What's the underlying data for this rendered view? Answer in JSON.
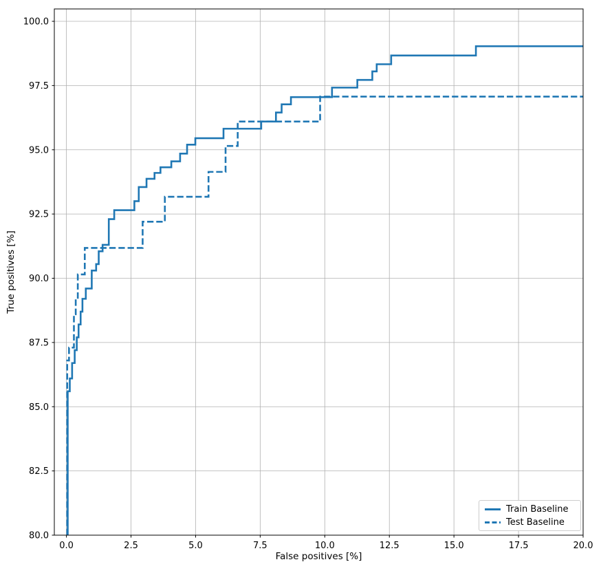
{
  "figure": {
    "background": "#ffffff"
  },
  "chart_data": {
    "type": "line",
    "subtype": "step-post",
    "title": "",
    "xlabel": "False positives [%]",
    "ylabel": "True positives [%]",
    "xlim": [
      -0.4685,
      20.0
    ],
    "ylim": [
      80.0,
      100.482
    ],
    "grid": true,
    "grid_color": "#b0b0b0",
    "axis_color": "#000000",
    "line_color": "#1f77b4",
    "legend_position": "lower right",
    "xticks": {
      "values": [
        0,
        2.5,
        5,
        7.5,
        10,
        12.5,
        15,
        17.5,
        20
      ],
      "labels": [
        "0.0",
        "2.5",
        "5.0",
        "7.5",
        "10.0",
        "12.5",
        "15.0",
        "17.5",
        "20.0"
      ]
    },
    "yticks": {
      "values": [
        80,
        82.5,
        85,
        87.5,
        90,
        92.5,
        95,
        97.5,
        100
      ],
      "labels": [
        "80.0",
        "82.5",
        "85.0",
        "87.5",
        "90.0",
        "92.5",
        "95.0",
        "97.5",
        "100.0"
      ]
    },
    "series": [
      {
        "name": "Train Baseline",
        "style": "solid",
        "color": "#1f77b4",
        "start_y": 80.0,
        "end_x": 20.0,
        "steps": [
          [
            0.05,
            85.6
          ],
          [
            0.13,
            86.1
          ],
          [
            0.22,
            86.7
          ],
          [
            0.32,
            87.2
          ],
          [
            0.4,
            87.7
          ],
          [
            0.47,
            88.2
          ],
          [
            0.55,
            88.7
          ],
          [
            0.62,
            89.2
          ],
          [
            0.75,
            89.6
          ],
          [
            0.98,
            90.3
          ],
          [
            1.15,
            90.55
          ],
          [
            1.25,
            91.05
          ],
          [
            1.4,
            91.3
          ],
          [
            1.64,
            92.3
          ],
          [
            1.85,
            92.65
          ],
          [
            2.63,
            93.0
          ],
          [
            2.8,
            93.55
          ],
          [
            3.1,
            93.87
          ],
          [
            3.41,
            94.1
          ],
          [
            3.64,
            94.32
          ],
          [
            4.06,
            94.55
          ],
          [
            4.4,
            94.85
          ],
          [
            4.67,
            95.2
          ],
          [
            4.99,
            95.45
          ],
          [
            6.08,
            95.82
          ],
          [
            7.54,
            96.1
          ],
          [
            8.11,
            96.45
          ],
          [
            8.33,
            96.77
          ],
          [
            8.69,
            97.05
          ],
          [
            10.28,
            97.42
          ],
          [
            11.26,
            97.72
          ],
          [
            11.84,
            98.05
          ],
          [
            12.01,
            98.33
          ],
          [
            12.57,
            98.67
          ],
          [
            15.85,
            99.03
          ]
        ]
      },
      {
        "name": "Test Baseline",
        "style": "dashed",
        "color": "#1f77b4",
        "start_y": 80.0,
        "end_x": 20.0,
        "steps": [
          [
            0.03,
            86.8
          ],
          [
            0.1,
            87.3
          ],
          [
            0.29,
            88.6
          ],
          [
            0.36,
            89.2
          ],
          [
            0.44,
            90.15
          ],
          [
            0.71,
            91.18
          ],
          [
            2.95,
            92.2
          ],
          [
            3.81,
            93.17
          ],
          [
            5.5,
            94.14
          ],
          [
            6.16,
            95.15
          ],
          [
            6.63,
            96.1
          ],
          [
            9.82,
            97.07
          ]
        ]
      }
    ]
  }
}
